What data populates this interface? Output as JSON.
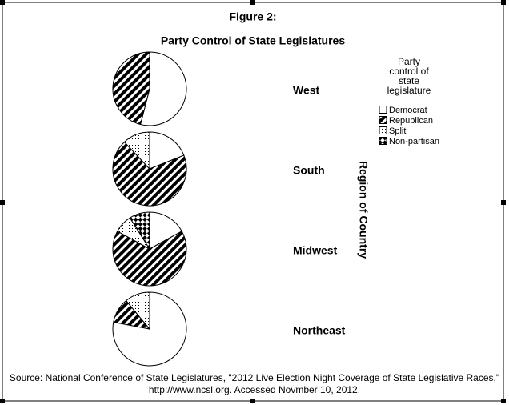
{
  "chart_data": {
    "type": "pie",
    "title": "Figure 2:",
    "subtitle": "Party Control of State Legislatures",
    "categories": [
      "West",
      "South",
      "Midwest",
      "Northeast"
    ],
    "axis_label": "Region of Country",
    "legend_title": "Party control of state legislature",
    "series": [
      {
        "name": "Democrat",
        "pattern": "white",
        "values": [
          54,
          19,
          17,
          78
        ]
      },
      {
        "name": "Republican",
        "pattern": "diagonal-hatch",
        "values": [
          46,
          69,
          66,
          11
        ]
      },
      {
        "name": "Split",
        "pattern": "dots",
        "values": [
          0,
          12,
          8,
          11
        ]
      },
      {
        "name": "Non-partisan",
        "pattern": "checker",
        "values": [
          0,
          0,
          9,
          0
        ]
      }
    ],
    "source": "Source: National Conference of State Legislatures, \"2012 Live Election Night Coverage of State Legislative Races,\" http://www.ncsl.org.  Accessed Novmber 10, 2012."
  }
}
